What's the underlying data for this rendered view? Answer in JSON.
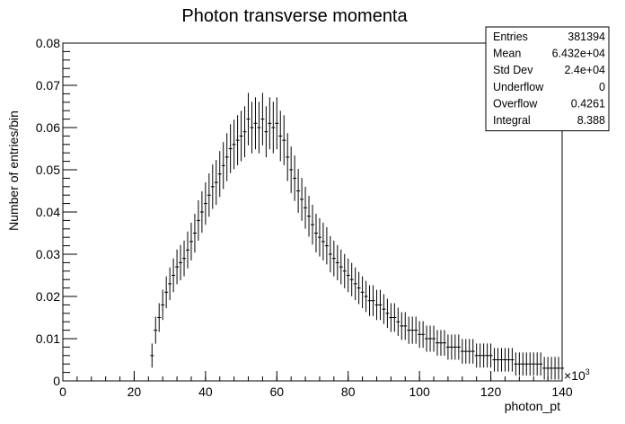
{
  "chart_data": {
    "type": "histogram",
    "title": "Photon transverse momenta",
    "xlabel": "photon_pt",
    "ylabel": "Number of entries/bin",
    "x_multiplier_label": "×10",
    "x_multiplier_exponent": "3",
    "xlim": [
      0,
      140
    ],
    "ylim": [
      0,
      0.08
    ],
    "x_ticks": [
      0,
      20,
      40,
      60,
      80,
      100,
      120,
      140
    ],
    "y_ticks": [
      "0",
      "0.01",
      "0.02",
      "0.03",
      "0.04",
      "0.05",
      "0.06",
      "0.07",
      "0.08"
    ],
    "x_tick_labels": [
      "0",
      "20",
      "40",
      "60",
      "80",
      "100",
      "120",
      "140"
    ],
    "series": [
      {
        "x": [
          25,
          26,
          27,
          28,
          29,
          30,
          31,
          32,
          33,
          34,
          35,
          36,
          37,
          38,
          39,
          40,
          41,
          42,
          43,
          44,
          45,
          46,
          47,
          48,
          49,
          50,
          51,
          52,
          53,
          54,
          55,
          56,
          57,
          58,
          59,
          60,
          61,
          62,
          63,
          64,
          65,
          66,
          67,
          68,
          69,
          70,
          71,
          72,
          73,
          74,
          75,
          76,
          77,
          78,
          79,
          80,
          81,
          82,
          83,
          84,
          85,
          86,
          87,
          88,
          89,
          90,
          91,
          92,
          93,
          94,
          95,
          96,
          97,
          98,
          99,
          100,
          101,
          102,
          103,
          104,
          105,
          106,
          107,
          108,
          109,
          110,
          111,
          112,
          113,
          114,
          115,
          116,
          117,
          118,
          119,
          120,
          121,
          122,
          123,
          124,
          125,
          126,
          127,
          128,
          129,
          130,
          131,
          132,
          133,
          134,
          135,
          136,
          137,
          138,
          139,
          140
        ],
        "y": [
          0.006,
          0.012,
          0.015,
          0.018,
          0.021,
          0.023,
          0.025,
          0.027,
          0.028,
          0.029,
          0.031,
          0.033,
          0.035,
          0.038,
          0.04,
          0.042,
          0.044,
          0.046,
          0.047,
          0.049,
          0.051,
          0.053,
          0.055,
          0.056,
          0.057,
          0.058,
          0.059,
          0.062,
          0.06,
          0.061,
          0.06,
          0.062,
          0.059,
          0.061,
          0.06,
          0.061,
          0.058,
          0.057,
          0.053,
          0.05,
          0.048,
          0.045,
          0.043,
          0.041,
          0.039,
          0.037,
          0.035,
          0.034,
          0.033,
          0.032,
          0.03,
          0.029,
          0.028,
          0.027,
          0.026,
          0.025,
          0.024,
          0.023,
          0.022,
          0.021,
          0.02,
          0.019,
          0.019,
          0.018,
          0.018,
          0.017,
          0.016,
          0.015,
          0.015,
          0.014,
          0.013,
          0.013,
          0.012,
          0.012,
          0.012,
          0.011,
          0.011,
          0.01,
          0.01,
          0.01,
          0.009,
          0.009,
          0.009,
          0.008,
          0.008,
          0.008,
          0.008,
          0.007,
          0.007,
          0.007,
          0.007,
          0.006,
          0.006,
          0.006,
          0.006,
          0.006,
          0.005,
          0.005,
          0.005,
          0.005,
          0.005,
          0.005,
          0.004,
          0.004,
          0.004,
          0.004,
          0.004,
          0.004,
          0.004,
          0.004,
          0.003,
          0.003,
          0.003,
          0.003,
          0.003,
          0.003
        ]
      }
    ],
    "stats_box": [
      {
        "label": "Entries",
        "value": "381394"
      },
      {
        "label": "Mean",
        "value": "6.432e+04"
      },
      {
        "label": "Std Dev",
        "value": "2.4e+04"
      },
      {
        "label": "Underflow",
        "value": "0"
      },
      {
        "label": "Overflow",
        "value": "0.4261"
      },
      {
        "label": "Integral",
        "value": "8.388"
      }
    ]
  }
}
